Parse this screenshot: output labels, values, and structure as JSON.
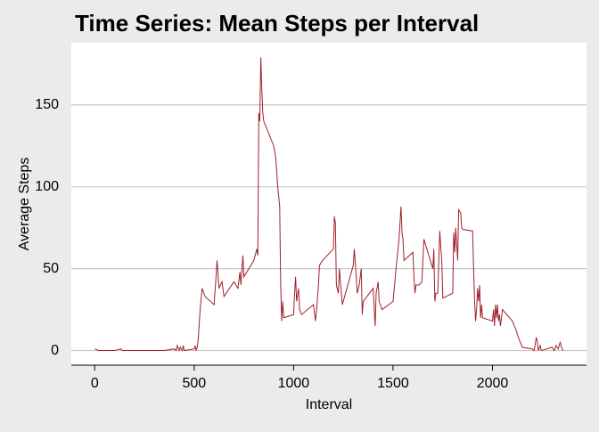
{
  "chart_data": {
    "type": "line",
    "title": "Time Series: Mean Steps per Interval",
    "x_label": "Interval",
    "y_label": "Average Steps",
    "x": [
      0,
      20,
      100,
      130,
      140,
      200,
      300,
      350,
      400,
      410,
      415,
      425,
      430,
      440,
      445,
      450,
      500,
      505,
      510,
      515,
      520,
      530,
      540,
      555,
      600,
      610,
      615,
      625,
      640,
      650,
      700,
      710,
      720,
      730,
      735,
      745,
      750,
      800,
      815,
      820,
      825,
      830,
      835,
      840,
      845,
      850,
      900,
      910,
      920,
      930,
      935,
      940,
      945,
      950,
      1000,
      1005,
      1010,
      1015,
      1025,
      1030,
      1040,
      1100,
      1110,
      1115,
      1125,
      1130,
      1145,
      1200,
      1205,
      1210,
      1215,
      1225,
      1230,
      1245,
      1300,
      1305,
      1315,
      1320,
      1330,
      1340,
      1345,
      1350,
      1400,
      1410,
      1415,
      1425,
      1430,
      1445,
      1500,
      1515,
      1530,
      1540,
      1545,
      1550,
      1555,
      1600,
      1605,
      1610,
      1615,
      1630,
      1645,
      1650,
      1655,
      1700,
      1705,
      1710,
      1715,
      1725,
      1730,
      1735,
      1740,
      1745,
      1750,
      1800,
      1805,
      1810,
      1815,
      1820,
      1825,
      1830,
      1840,
      1845,
      1850,
      1900,
      1905,
      1910,
      1915,
      1920,
      1925,
      1930,
      1935,
      1940,
      1945,
      1950,
      2000,
      2005,
      2010,
      2015,
      2020,
      2025,
      2030,
      2035,
      2040,
      2045,
      2050,
      2100,
      2110,
      2120,
      2130,
      2140,
      2150,
      2200,
      2210,
      2220,
      2225,
      2230,
      2240,
      2245,
      2300,
      2310,
      2320,
      2330,
      2340,
      2350,
      2355
    ],
    "values": [
      1,
      0,
      0,
      1,
      0,
      0,
      0,
      0,
      1,
      0,
      3,
      0,
      2,
      0,
      3,
      0,
      1,
      3,
      0,
      2,
      6,
      25,
      38,
      33,
      28,
      45,
      55,
      38,
      42,
      33,
      42,
      40,
      38,
      48,
      40,
      58,
      45,
      55,
      62,
      58,
      145,
      140,
      179,
      160,
      145,
      140,
      125,
      118,
      100,
      88,
      40,
      18,
      30,
      20,
      22,
      35,
      45,
      30,
      38,
      25,
      22,
      28,
      18,
      24,
      40,
      52,
      55,
      62,
      82,
      78,
      40,
      35,
      50,
      28,
      52,
      62,
      45,
      35,
      40,
      50,
      22,
      30,
      38,
      15,
      35,
      42,
      30,
      25,
      30,
      50,
      68,
      88,
      72,
      68,
      55,
      60,
      45,
      35,
      40,
      40,
      42,
      55,
      68,
      50,
      62,
      30,
      35,
      35,
      55,
      73,
      63,
      55,
      32,
      35,
      72,
      60,
      75,
      65,
      55,
      86,
      84,
      75,
      74,
      73,
      50,
      30,
      18,
      25,
      38,
      30,
      40,
      20,
      28,
      20,
      18,
      25,
      15,
      28,
      20,
      28,
      18,
      22,
      15,
      20,
      25,
      18,
      15,
      12,
      8,
      5,
      2,
      1,
      0,
      8,
      6,
      0,
      3,
      0,
      2,
      0,
      3,
      1,
      5,
      1,
      0
    ],
    "color": "#a0202a",
    "xlim": [
      -117.75,
      2472.75
    ],
    "ylim": [
      -8.95,
      187.95
    ],
    "xticks": [
      0,
      500,
      1000,
      1500,
      2000
    ],
    "yticks": [
      0,
      50,
      100,
      150
    ],
    "grid": true
  }
}
